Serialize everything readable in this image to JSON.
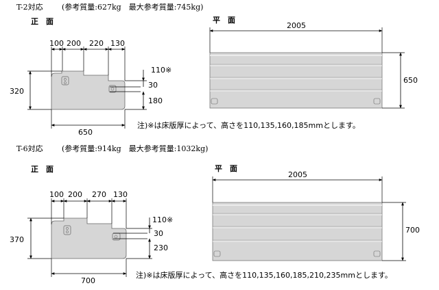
{
  "section1": {
    "title": "T-2対応",
    "weights": "(参考質量:627kg　最大参考質量:745kg)",
    "front_label": "正　面",
    "plan_label": "平　面",
    "front_dims_top": [
      "100",
      "200",
      "220",
      "130"
    ],
    "front_height": "320",
    "front_right_dims": [
      "110※",
      "30",
      "180"
    ],
    "front_width": "650",
    "plan_width": "2005",
    "plan_height": "650",
    "note": "注)※は床版厚によって、高さを110,135,160,185mmとします。"
  },
  "section2": {
    "title": "T-6対応",
    "weights": "(参考質量:914kg　最大参考質量:1032kg)",
    "front_label": "正　面",
    "plan_label": "平　面",
    "front_dims_top": [
      "100",
      "200",
      "270",
      "130"
    ],
    "front_height": "370",
    "front_right_dims": [
      "110※",
      "30",
      "230"
    ],
    "front_width": "700",
    "plan_width": "2005",
    "plan_height": "700",
    "note": "注)※は床版厚によって、高さを110,135,160,185,210,235mmとします。"
  },
  "colors": {
    "concrete": "#d6d6d6",
    "line": "#000000",
    "outline": "#555555"
  }
}
